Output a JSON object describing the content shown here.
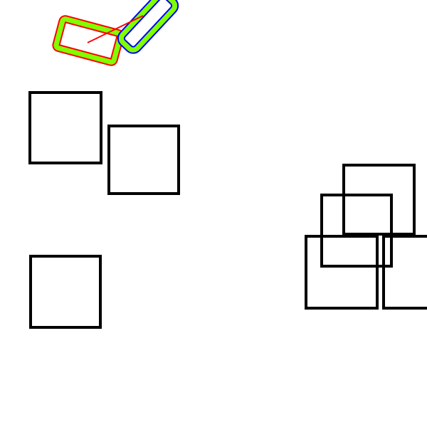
{
  "colors": {
    "background": "#ffffff",
    "square_stroke": "#000000",
    "outer_outline_red": "#ff0000",
    "outer_outline_blue": "#0000ff",
    "fill_stroke_green": "#80ff00",
    "cross_line_red": "#ff0000"
  },
  "scene": {
    "shapes": [
      "rounded-rectangle-red-green",
      "rounded-rectangle-blue-green",
      "red-line",
      "square-1",
      "square-2",
      "square-3",
      "square-4",
      "square-5",
      "square-6",
      "square-7"
    ]
  }
}
